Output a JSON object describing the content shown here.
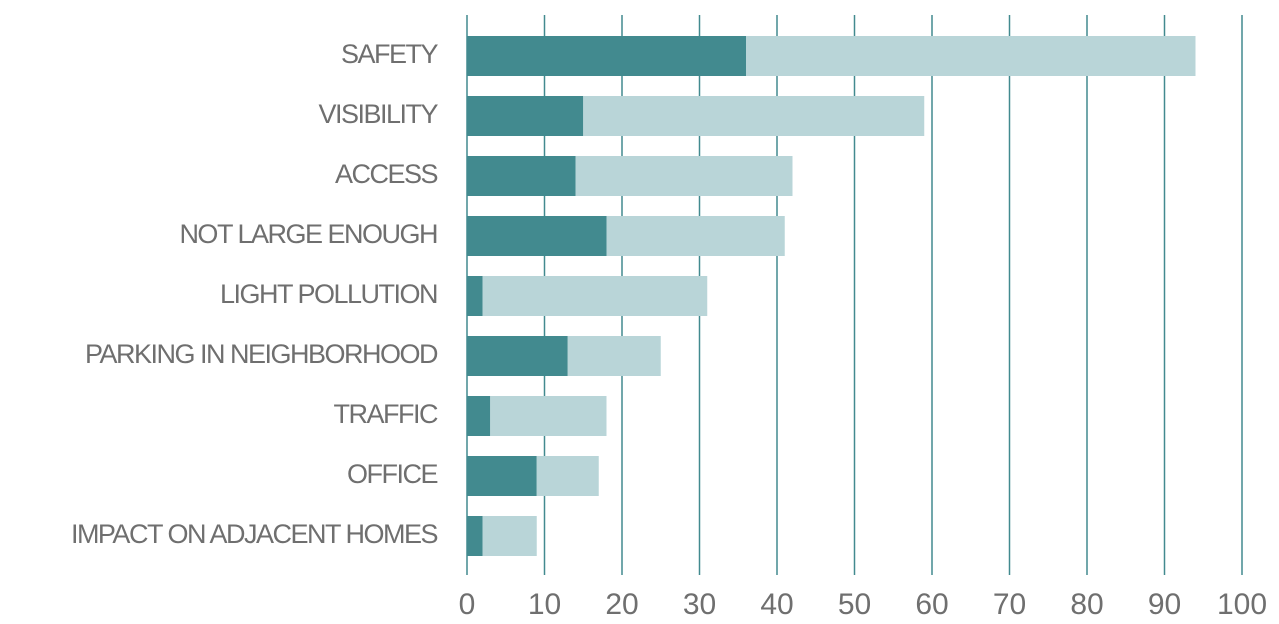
{
  "chart_data": {
    "type": "stacked_barh",
    "categories": [
      "SAFETY",
      "VISIBILITY",
      "ACCESS",
      "NOT LARGE ENOUGH",
      "LIGHT POLLUTION",
      "PARKING IN NEIGHBORHOOD",
      "TRAFFIC",
      "OFFICE",
      "IMPACT ON ADJACENT HOMES"
    ],
    "series": [
      {
        "color": "#428a8f",
        "values": [
          36,
          15,
          14,
          18,
          2,
          13,
          3,
          9,
          2
        ]
      },
      {
        "color": "#b9d5d8",
        "values": [
          58,
          44,
          28,
          23,
          29,
          12,
          15,
          8,
          7
        ]
      }
    ],
    "xlim": [
      0,
      100
    ],
    "xticks": [
      0,
      10,
      20,
      30,
      40,
      50,
      60,
      70,
      80,
      90,
      100
    ],
    "grid": true,
    "grid_color": "#428a8f"
  }
}
